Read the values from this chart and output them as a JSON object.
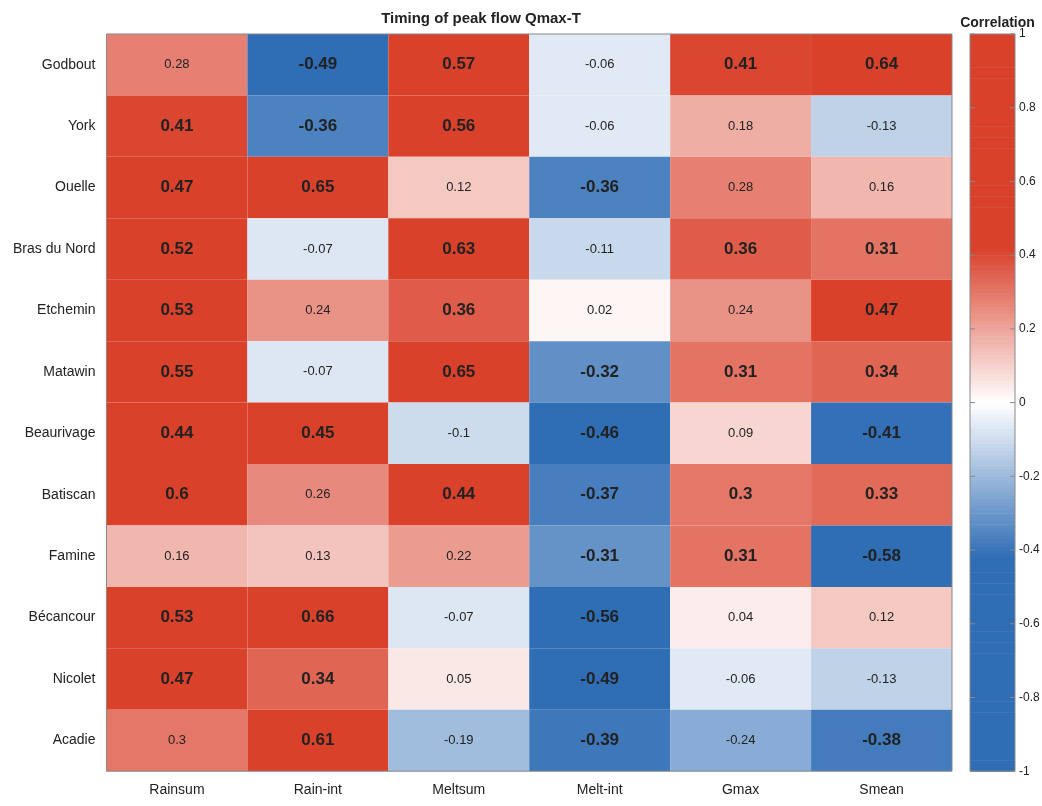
{
  "chart_data": {
    "type": "heatmap",
    "title": "Timing of peak flow Qmax-T",
    "clabel": "Correlation",
    "categories": [
      "Rainsum",
      "Rain-int",
      "Meltsum",
      "Melt-int",
      "Gmax",
      "Smean"
    ],
    "y_categories": [
      "Godbout",
      "York",
      "Ouelle",
      "Bras du Nord",
      "Etchemin",
      "Matawin",
      "Beaurivage",
      "Batiscan",
      "Famine",
      "Bécancour",
      "Nicolet",
      "Acadie"
    ],
    "cells": [
      [
        0.28,
        -0.49,
        0.57,
        -0.06,
        0.41,
        0.64
      ],
      [
        0.41,
        -0.36,
        0.56,
        -0.06,
        0.18,
        -0.13
      ],
      [
        0.47,
        0.65,
        0.12,
        -0.36,
        0.28,
        0.16
      ],
      [
        0.52,
        -0.07,
        0.63,
        -0.11,
        0.36,
        0.31
      ],
      [
        0.53,
        0.24,
        0.36,
        0.02,
        0.24,
        0.47
      ],
      [
        0.55,
        -0.07,
        0.65,
        -0.32,
        0.31,
        0.34
      ],
      [
        0.44,
        0.45,
        -0.1,
        -0.46,
        0.09,
        -0.41
      ],
      [
        0.6,
        0.26,
        0.44,
        -0.37,
        0.3,
        0.33
      ],
      [
        0.16,
        0.13,
        0.22,
        -0.31,
        0.31,
        -0.58
      ],
      [
        0.53,
        0.66,
        -0.07,
        -0.56,
        0.04,
        0.12
      ],
      [
        0.47,
        0.34,
        0.05,
        -0.49,
        -0.06,
        -0.13
      ],
      [
        0.3,
        0.61,
        -0.19,
        -0.39,
        -0.24,
        -0.38
      ]
    ],
    "clim": [
      -1,
      1
    ],
    "cticks": [
      -1,
      -0.8,
      -0.6,
      -0.4,
      -0.2,
      0,
      0.2,
      0.4,
      0.6,
      0.8,
      1
    ],
    "data_labels": true
  }
}
